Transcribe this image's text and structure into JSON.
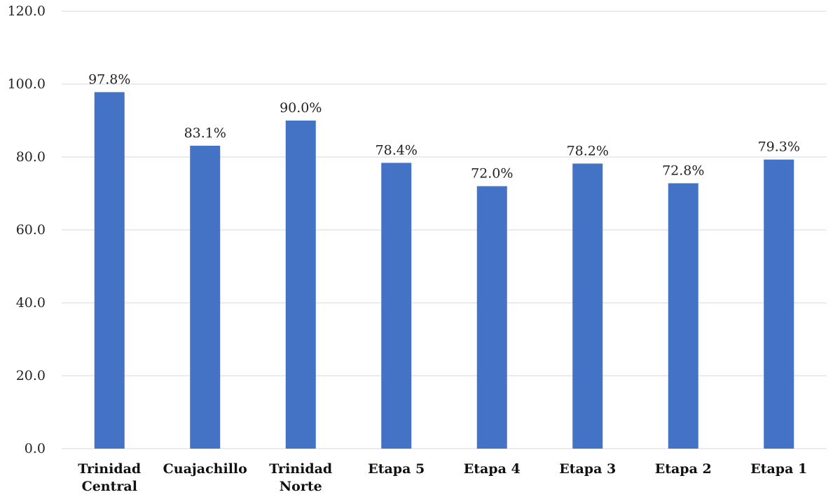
{
  "chart_data": {
    "type": "bar",
    "categories": [
      [
        "Trinidad",
        "Central"
      ],
      [
        "Cuajachillo"
      ],
      [
        "Trinidad",
        "Norte"
      ],
      [
        "Etapa 5"
      ],
      [
        "Etapa 4"
      ],
      [
        "Etapa 3"
      ],
      [
        "Etapa 2"
      ],
      [
        "Etapa 1"
      ]
    ],
    "values": [
      97.8,
      83.1,
      90.0,
      78.4,
      72.0,
      78.2,
      72.8,
      79.3
    ],
    "data_labels": [
      "97.8%",
      "83.1%",
      "90.0%",
      "78.4%",
      "72.0%",
      "78.2%",
      "72.8%",
      "79.3%"
    ],
    "y_ticks": [
      "0.0",
      "20.0",
      "40.0",
      "60.0",
      "80.0",
      "100.0",
      "120.0"
    ],
    "y_tick_values": [
      0,
      20,
      40,
      60,
      80,
      100,
      120
    ],
    "ylim": [
      0,
      120
    ],
    "grid": true,
    "legend": "none",
    "colors": {
      "bar": "#4472C4",
      "grid": "#d9d9d9"
    }
  }
}
